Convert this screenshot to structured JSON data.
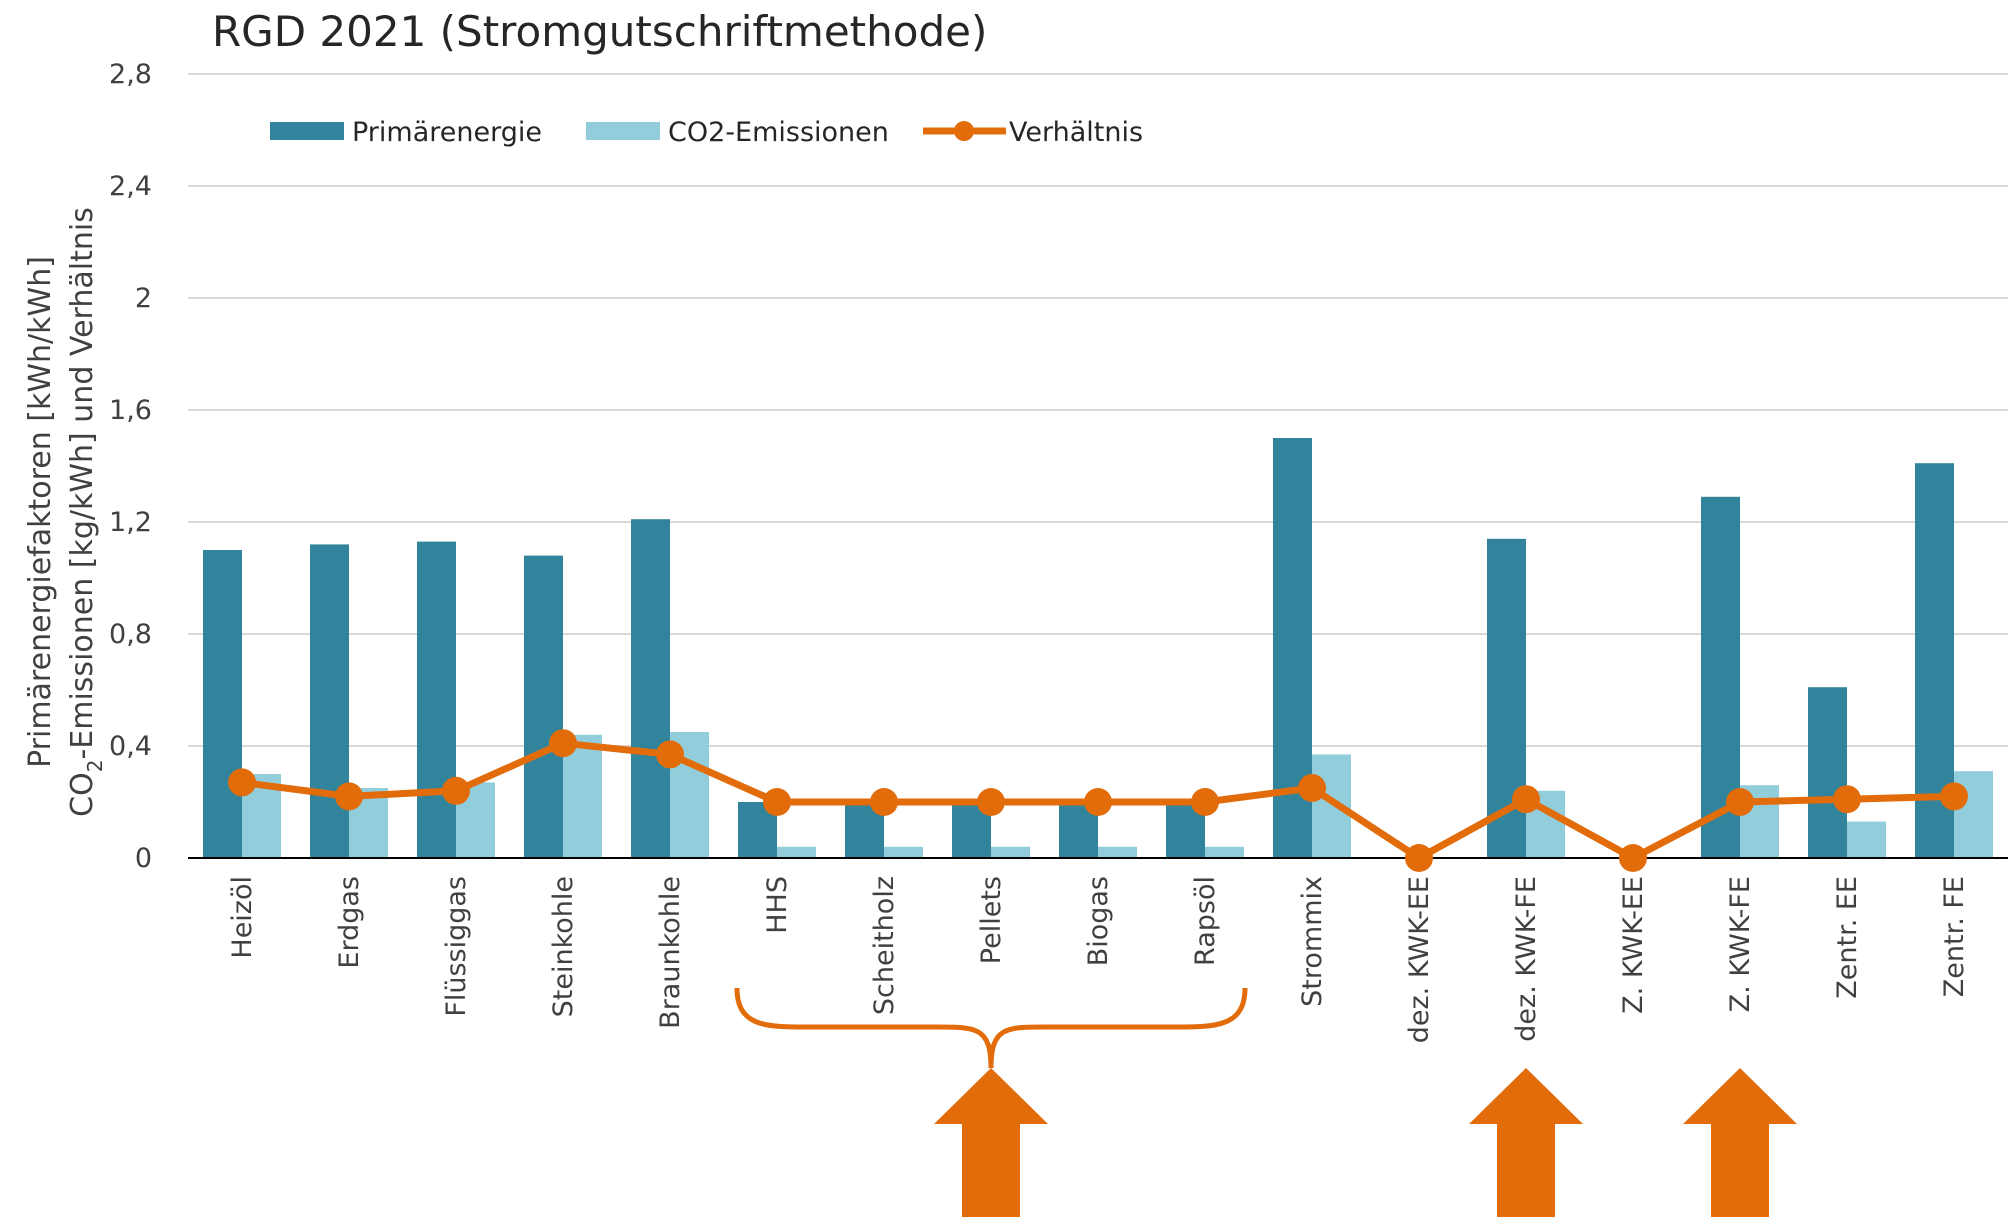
{
  "chart_data": {
    "type": "bar",
    "title": "RGD 2021 (Stromgutschriftmethode)",
    "ylabel_line1": "Primärenergiefaktoren [kWh/kWh]",
    "ylabel_line2_pre": "CO",
    "ylabel_line2_sub": "2",
    "ylabel_line2_post": "-Emissionen [kg/kWh] und Verhältnis",
    "ylim": [
      0,
      2.8
    ],
    "y_ticks": [
      "0",
      "0,4",
      "0,8",
      "1,2",
      "1,6",
      "2",
      "2,4",
      "2,8"
    ],
    "y_tick_values": [
      0,
      0.4,
      0.8,
      1.2,
      1.6,
      2.0,
      2.4,
      2.8
    ],
    "grid": true,
    "legend_position": "top-left",
    "categories": [
      "Heizöl",
      "Erdgas",
      "Flüssiggas",
      "Steinkohle",
      "Braunkohle",
      "HHS",
      "Scheitholz",
      "Pellets",
      "Biogas",
      "Rapsöl",
      "Strommix",
      "dez. KWK-EE",
      "dez. KWK-FE",
      "Z. KWK-EE",
      "Z. KWK-FE",
      "Zentr. EE",
      "Zentr. FE"
    ],
    "series": [
      {
        "name": "Primärenergie",
        "kind": "bar",
        "color": "#31849b",
        "values": [
          1.1,
          1.12,
          1.13,
          1.08,
          1.21,
          0.2,
          0.2,
          0.2,
          0.2,
          0.2,
          1.5,
          0.0,
          1.14,
          0.0,
          1.29,
          0.61,
          1.41
        ]
      },
      {
        "name": "CO2-Emissionen",
        "kind": "bar",
        "color": "#92cddc",
        "values": [
          0.3,
          0.25,
          0.27,
          0.44,
          0.45,
          0.04,
          0.04,
          0.04,
          0.04,
          0.04,
          0.37,
          0.0,
          0.24,
          0.0,
          0.26,
          0.13,
          0.31
        ]
      },
      {
        "name": "Verhältnis",
        "kind": "line",
        "color": "#e36c0a",
        "values": [
          0.27,
          0.22,
          0.24,
          0.41,
          0.37,
          0.2,
          0.2,
          0.2,
          0.2,
          0.2,
          0.25,
          0.0,
          0.21,
          0.0,
          0.2,
          0.21,
          0.22
        ]
      }
    ],
    "annotations": {
      "brace": {
        "from_category": "HHS",
        "to_category": "Rapsöl",
        "color": "#e36c0a"
      },
      "arrows": [
        {
          "target": "Pellets",
          "color": "#e36c0a"
        },
        {
          "target": "dez. KWK-FE",
          "color": "#e36c0a"
        },
        {
          "target": "Z. KWK-FE",
          "color": "#e36c0a"
        }
      ]
    }
  }
}
